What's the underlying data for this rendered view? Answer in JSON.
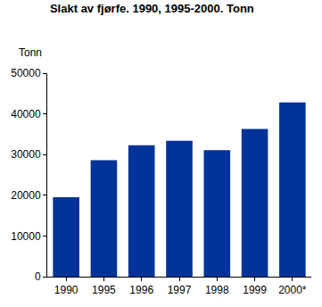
{
  "chart_data": {
    "type": "bar",
    "title": "Slakt av fjørfe. 1990, 1995-2000. Tonn",
    "y_label": "Tonn",
    "categories": [
      "1990",
      "1995",
      "1996",
      "1997",
      "1998",
      "1999",
      "2000*"
    ],
    "values": [
      19500,
      28600,
      32300,
      33400,
      31100,
      36300,
      42800
    ],
    "color": "#003399",
    "ylim": [
      0,
      50000
    ],
    "yticks": [
      0,
      10000,
      20000,
      30000,
      40000,
      50000
    ],
    "grid": false
  }
}
